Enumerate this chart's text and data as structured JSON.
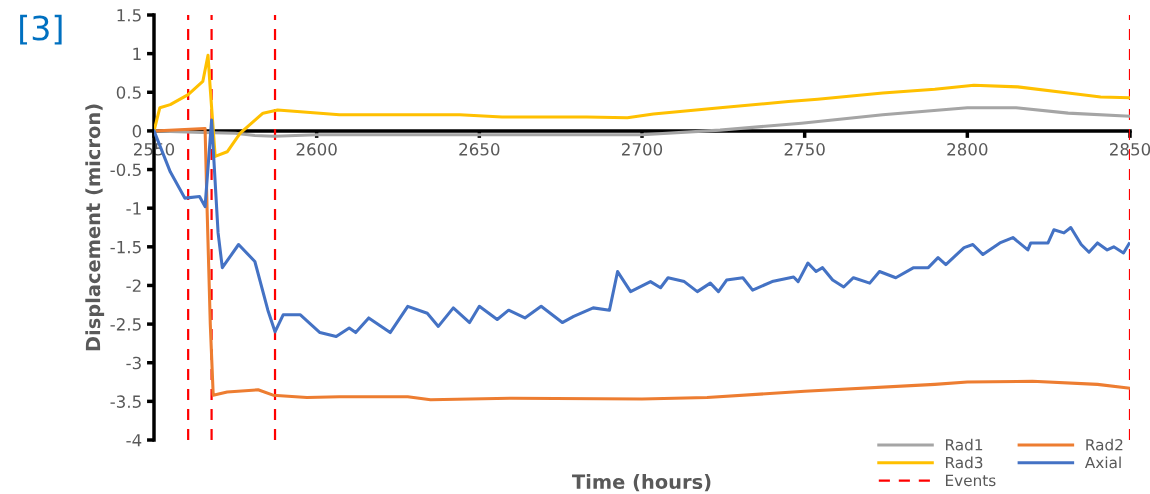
{
  "chart_data": {
    "type": "line",
    "title": "[3]",
    "xlabel": "Time (hours)",
    "ylabel": "Displacement (micron)",
    "xlim": [
      2550,
      2850
    ],
    "xticks": [
      2550,
      2600,
      2650,
      2700,
      2750,
      2800,
      2850
    ],
    "ylim": [
      -4,
      1.5
    ],
    "yticks": [
      -4,
      -3.5,
      -3,
      -2.5,
      -2,
      -1.5,
      -1,
      -0.5,
      0,
      0.5,
      1,
      1.5
    ],
    "grid": false,
    "legend": "bottom right",
    "marker": "none",
    "line_style": "solid",
    "series": [
      {
        "name": "Rad1",
        "color": "#a5a5a5",
        "x": [
          2550,
          2565,
          2575,
          2581,
          2587,
          2600,
          2650,
          2700,
          2724,
          2749,
          2774,
          2800,
          2815,
          2831,
          2850
        ],
        "values": [
          0,
          -0.02,
          -0.03,
          -0.06,
          -0.07,
          -0.05,
          -0.05,
          -0.05,
          0.01,
          0.1,
          0.21,
          0.3,
          0.3,
          0.23,
          0.19
        ]
      },
      {
        "name": "Rad2",
        "color": "#ed7d31",
        "x": [
          2550,
          2565.7,
          2566.3,
          2567.3,
          2568.2,
          2572.5,
          2582,
          2586.6,
          2597,
          2607,
          2617,
          2628,
          2635,
          2660,
          2700,
          2720,
          2750,
          2790,
          2800,
          2820,
          2840,
          2850
        ],
        "values": [
          0,
          0.03,
          -0.98,
          -2.5,
          -3.42,
          -3.38,
          -3.35,
          -3.42,
          -3.45,
          -3.44,
          -3.44,
          -3.44,
          -3.48,
          -3.46,
          -3.47,
          -3.45,
          -3.37,
          -3.28,
          -3.25,
          -3.24,
          -3.28,
          -3.33
        ]
      },
      {
        "name": "Rad3",
        "color": "#ffc000",
        "x": [
          2550,
          2551.8,
          2555,
          2560.5,
          2565,
          2566.6,
          2567.2,
          2568.8,
          2572.5,
          2576.5,
          2583.5,
          2588,
          2607,
          2628,
          2644,
          2657,
          2683,
          2695.5,
          2703.5,
          2724,
          2745,
          2754,
          2774,
          2790,
          2802,
          2815.5,
          2831,
          2841,
          2850
        ],
        "values": [
          0,
          0.3,
          0.34,
          0.47,
          0.64,
          0.98,
          0.6,
          -0.33,
          -0.27,
          -0.03,
          0.23,
          0.27,
          0.21,
          0.21,
          0.21,
          0.18,
          0.18,
          0.17,
          0.22,
          0.3,
          0.38,
          0.41,
          0.49,
          0.54,
          0.59,
          0.57,
          0.49,
          0.44,
          0.43
        ]
      },
      {
        "name": "Axial",
        "color": "#4472c4",
        "x": [
          2550,
          2555,
          2559.5,
          2564,
          2565.7,
          2567.7,
          2569.7,
          2571,
          2576,
          2581,
          2585,
          2587.2,
          2589.7,
          2595,
          2601,
          2606,
          2610,
          2612,
          2616,
          2622.6,
          2628,
          2634,
          2637.4,
          2642,
          2647,
          2650,
          2655.5,
          2659,
          2664,
          2669,
          2675.5,
          2679,
          2685,
          2690,
          2692.5,
          2696.5,
          2702.6,
          2705.7,
          2708,
          2713,
          2717,
          2721,
          2723.5,
          2726,
          2731,
          2734,
          2740,
          2746.6,
          2748,
          2751,
          2753.5,
          2755.5,
          2758.6,
          2762,
          2765,
          2770,
          2773,
          2778,
          2783.5,
          2788,
          2791,
          2793.4,
          2799,
          2801.7,
          2804.8,
          2810,
          2814,
          2818.6,
          2819.5,
          2824.8,
          2826.6,
          2829.7,
          2831.8,
          2835,
          2837.4,
          2840,
          2843,
          2845,
          2848,
          2849.7
        ],
        "values": [
          0,
          -0.53,
          -0.87,
          -0.85,
          -0.98,
          0.14,
          -1.32,
          -1.77,
          -1.47,
          -1.69,
          -2.32,
          -2.6,
          -2.38,
          -2.38,
          -2.61,
          -2.66,
          -2.55,
          -2.61,
          -2.42,
          -2.61,
          -2.27,
          -2.36,
          -2.53,
          -2.29,
          -2.48,
          -2.27,
          -2.44,
          -2.32,
          -2.42,
          -2.27,
          -2.48,
          -2.4,
          -2.29,
          -2.32,
          -1.82,
          -2.08,
          -1.95,
          -2.03,
          -1.9,
          -1.95,
          -2.08,
          -1.97,
          -2.08,
          -1.93,
          -1.9,
          -2.06,
          -1.95,
          -1.89,
          -1.95,
          -1.71,
          -1.82,
          -1.77,
          -1.93,
          -2.02,
          -1.9,
          -1.97,
          -1.82,
          -1.9,
          -1.77,
          -1.77,
          -1.64,
          -1.73,
          -1.51,
          -1.47,
          -1.6,
          -1.45,
          -1.38,
          -1.54,
          -1.45,
          -1.45,
          -1.28,
          -1.32,
          -1.25,
          -1.47,
          -1.57,
          -1.45,
          -1.54,
          -1.5,
          -1.58,
          -1.46
        ]
      }
    ],
    "ref_lines": [
      {
        "axis": "x",
        "value": 2560.5,
        "label": "Events",
        "color": "#ff0000",
        "line_style": "dashed"
      },
      {
        "axis": "x",
        "value": 2567.7,
        "color": "#ff0000",
        "line_style": "dashed"
      },
      {
        "axis": "x",
        "value": 2587.2,
        "color": "#ff0000",
        "line_style": "dashed"
      },
      {
        "axis": "x",
        "value": 2850,
        "color": "#ff0000",
        "line_style": "dashed"
      }
    ]
  }
}
